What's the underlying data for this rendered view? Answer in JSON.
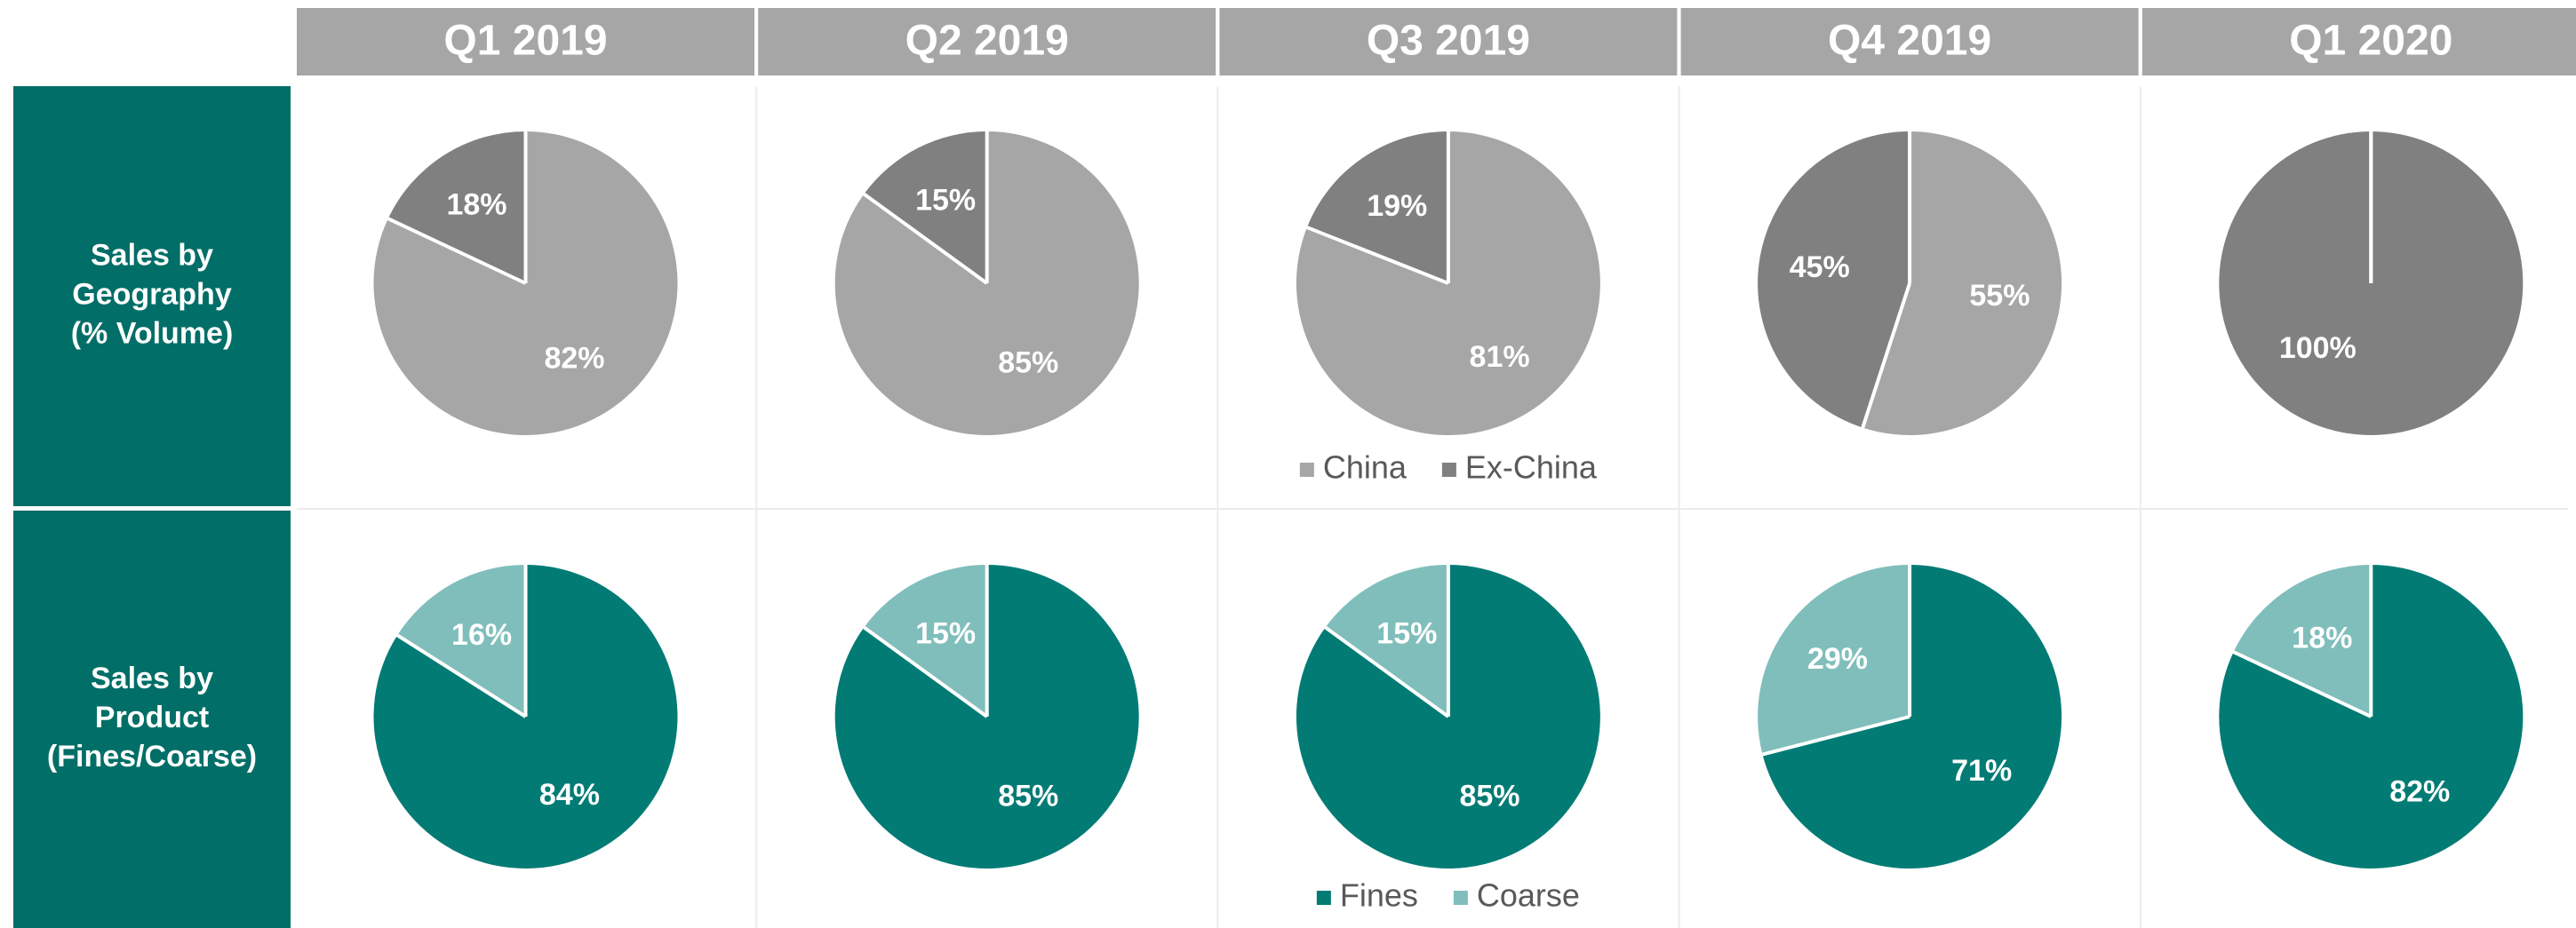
{
  "columns": [
    "Q1 2019",
    "Q2 2019",
    "Q3 2019",
    "Q4 2019",
    "Q1 2020"
  ],
  "chart_data": [
    {
      "type": "pie",
      "title": [
        "Sales by",
        "Geography",
        "(% Volume)"
      ],
      "categories": [
        "China",
        "Ex-China"
      ],
      "colors": [
        "#a6a6a6",
        "#808080"
      ],
      "series": [
        {
          "values": [
            82,
            18
          ],
          "value_labels": [
            "82%",
            "18%"
          ]
        },
        {
          "values": [
            85,
            15
          ],
          "value_labels": [
            "85%",
            "15%"
          ]
        },
        {
          "values": [
            81,
            19
          ],
          "value_labels": [
            "81%",
            "19%"
          ]
        },
        {
          "values": [
            55,
            45
          ],
          "value_labels": [
            "55%",
            "45%"
          ]
        },
        {
          "values": [
            0,
            100
          ],
          "value_labels": [
            null,
            "100%"
          ]
        }
      ]
    },
    {
      "type": "pie",
      "title": [
        "Sales by",
        "Product",
        "(Fines/Coarse)"
      ],
      "categories": [
        "Fines",
        "Coarse"
      ],
      "colors": [
        "#037b75",
        "#80bebb"
      ],
      "series": [
        {
          "values": [
            84,
            16
          ],
          "value_labels": [
            "84%",
            "16%"
          ]
        },
        {
          "values": [
            85,
            15
          ],
          "value_labels": [
            "85%",
            "15%"
          ]
        },
        {
          "values": [
            85,
            15
          ],
          "value_labels": [
            "85%",
            "15%"
          ]
        },
        {
          "values": [
            71,
            29
          ],
          "value_labels": [
            "71%",
            "29%"
          ]
        },
        {
          "values": [
            82,
            18
          ],
          "value_labels": [
            "82%",
            "18%"
          ]
        }
      ]
    }
  ]
}
